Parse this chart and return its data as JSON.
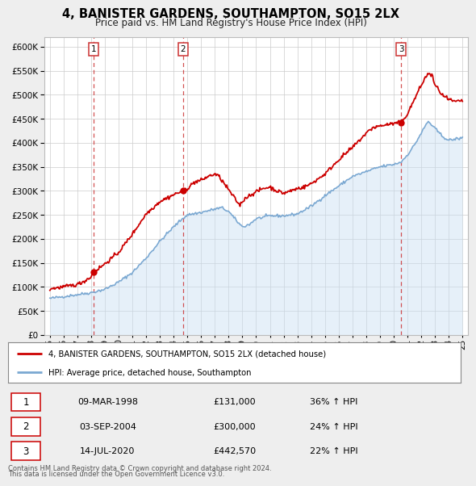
{
  "title": "4, BANISTER GARDENS, SOUTHAMPTON, SO15 2LX",
  "subtitle": "Price paid vs. HM Land Registry's House Price Index (HPI)",
  "legend_label_red": "4, BANISTER GARDENS, SOUTHAMPTON, SO15 2LX (detached house)",
  "legend_label_blue": "HPI: Average price, detached house, Southampton",
  "footer_line1": "Contains HM Land Registry data © Crown copyright and database right 2024.",
  "footer_line2": "This data is licensed under the Open Government Licence v3.0.",
  "transactions": [
    {
      "num": "1",
      "date": "09-MAR-1998",
      "price": "£131,000",
      "hpi": "36% ↑ HPI",
      "year": 1998.19,
      "value": 131000
    },
    {
      "num": "2",
      "date": "03-SEP-2004",
      "price": "£300,000",
      "hpi": "24% ↑ HPI",
      "year": 2004.67,
      "value": 300000
    },
    {
      "num": "3",
      "date": "14-JUL-2020",
      "price": "£442,570",
      "hpi": "22% ↑ HPI",
      "year": 2020.54,
      "value": 442570
    }
  ],
  "ylim": [
    0,
    620000
  ],
  "yticks": [
    0,
    50000,
    100000,
    150000,
    200000,
    250000,
    300000,
    350000,
    400000,
    450000,
    500000,
    550000,
    600000
  ],
  "xlim_start": 1994.6,
  "xlim_end": 2025.4,
  "red_color": "#cc0000",
  "blue_color": "#7aa8d2",
  "blue_fill_color": "#c8dff2",
  "vline_color": "#cc3333",
  "background_color": "#eeeeee",
  "plot_bg_color": "#ffffff",
  "grid_color": "#cccccc",
  "xtick_years": [
    1995,
    1996,
    1997,
    1998,
    1999,
    2000,
    2001,
    2002,
    2003,
    2004,
    2005,
    2006,
    2007,
    2008,
    2009,
    2010,
    2011,
    2012,
    2013,
    2014,
    2015,
    2016,
    2017,
    2018,
    2019,
    2020,
    2021,
    2022,
    2023,
    2024,
    2025
  ]
}
